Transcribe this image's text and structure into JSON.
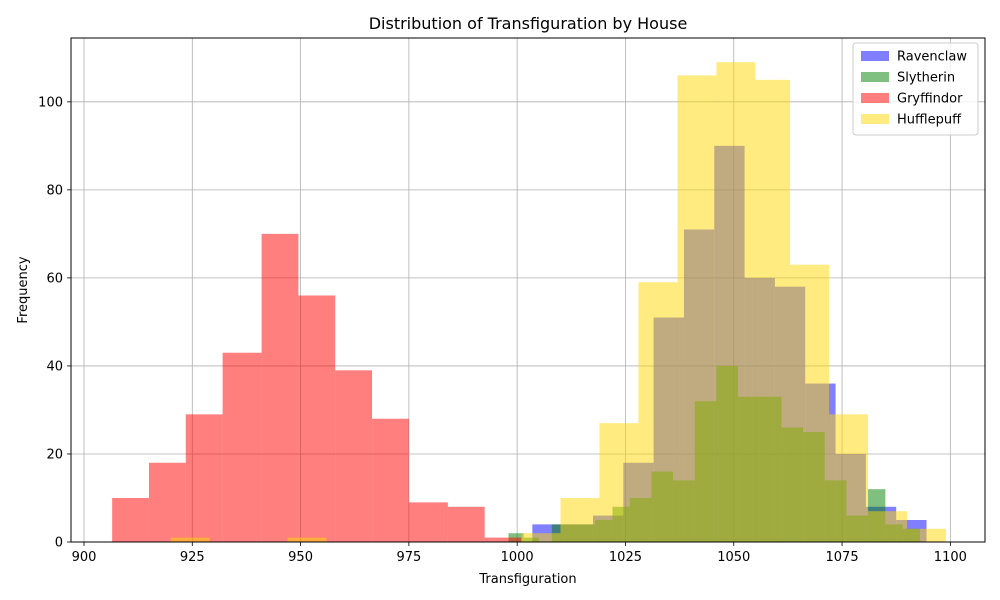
{
  "chart_data": {
    "type": "bar",
    "subtype": "overlapping-histogram",
    "title": "Distribution of Transfiguration by House",
    "xlabel": "Transfiguration",
    "ylabel": "Frequency",
    "xlim": [
      897,
      1108
    ],
    "ylim": [
      0,
      114.5
    ],
    "xticks": [
      900,
      925,
      950,
      975,
      1000,
      1025,
      1050,
      1075,
      1100
    ],
    "yticks": [
      0,
      20,
      40,
      60,
      80,
      100
    ],
    "grid": true,
    "legend_position": "top-right",
    "bar_opacity": 0.5,
    "series": [
      {
        "name": "Ravenclaw",
        "color": "#0000ff",
        "bins": [
          [
            1003.5,
            1010.5,
            4
          ],
          [
            1010.5,
            1017.5,
            4
          ],
          [
            1017.5,
            1024.5,
            6
          ],
          [
            1024.5,
            1031.5,
            18
          ],
          [
            1031.5,
            1038.5,
            51
          ],
          [
            1038.5,
            1045.5,
            71
          ],
          [
            1045.5,
            1052.5,
            90
          ],
          [
            1052.5,
            1059.5,
            60
          ],
          [
            1059.5,
            1066.5,
            58
          ],
          [
            1066.5,
            1073.5,
            36
          ],
          [
            1073.5,
            1080.5,
            20
          ],
          [
            1080.5,
            1087.5,
            8
          ],
          [
            1087.5,
            1094.5,
            5
          ]
        ]
      },
      {
        "name": "Slytherin",
        "color": "#008000",
        "bins": [
          [
            998,
            1001.5,
            2
          ],
          [
            1001.5,
            1005,
            1
          ],
          [
            1008,
            1013,
            4
          ],
          [
            1013,
            1018,
            4
          ],
          [
            1018,
            1022,
            5
          ],
          [
            1022,
            1026,
            8
          ],
          [
            1026,
            1031,
            10
          ],
          [
            1031,
            1036,
            16
          ],
          [
            1036,
            1041,
            14
          ],
          [
            1041,
            1046,
            32
          ],
          [
            1046,
            1051,
            40
          ],
          [
            1051,
            1056,
            33
          ],
          [
            1056,
            1061,
            33
          ],
          [
            1061,
            1066,
            26
          ],
          [
            1066,
            1071,
            25
          ],
          [
            1071,
            1076,
            14
          ],
          [
            1076,
            1081,
            6
          ],
          [
            1081,
            1085,
            12
          ],
          [
            1085,
            1089,
            4
          ],
          [
            1089,
            1093,
            3
          ]
        ]
      },
      {
        "name": "Gryffindor",
        "color": "#ff0000",
        "bins": [
          [
            906.5,
            915,
            10
          ],
          [
            915,
            923.5,
            18
          ],
          [
            923.5,
            932,
            29
          ],
          [
            932,
            941,
            43
          ],
          [
            941,
            949.5,
            70
          ],
          [
            949.5,
            958,
            56
          ],
          [
            958,
            966.5,
            39
          ],
          [
            966.5,
            975,
            28
          ],
          [
            975,
            984,
            9
          ],
          [
            984,
            992.5,
            8
          ],
          [
            992.5,
            1001,
            1
          ]
        ]
      },
      {
        "name": "Hufflepuff",
        "color": "#ffd700",
        "bins": [
          [
            920,
            929,
            1
          ],
          [
            947,
            956,
            1
          ],
          [
            1001,
            1010,
            2
          ],
          [
            1010,
            1019,
            10
          ],
          [
            1019,
            1028,
            27
          ],
          [
            1028,
            1037,
            59
          ],
          [
            1037,
            1046,
            106
          ],
          [
            1046,
            1055,
            109
          ],
          [
            1055,
            1063,
            105
          ],
          [
            1063,
            1072,
            63
          ],
          [
            1072,
            1081,
            29
          ],
          [
            1081,
            1090,
            7
          ],
          [
            1090,
            1099,
            3
          ]
        ]
      }
    ]
  }
}
